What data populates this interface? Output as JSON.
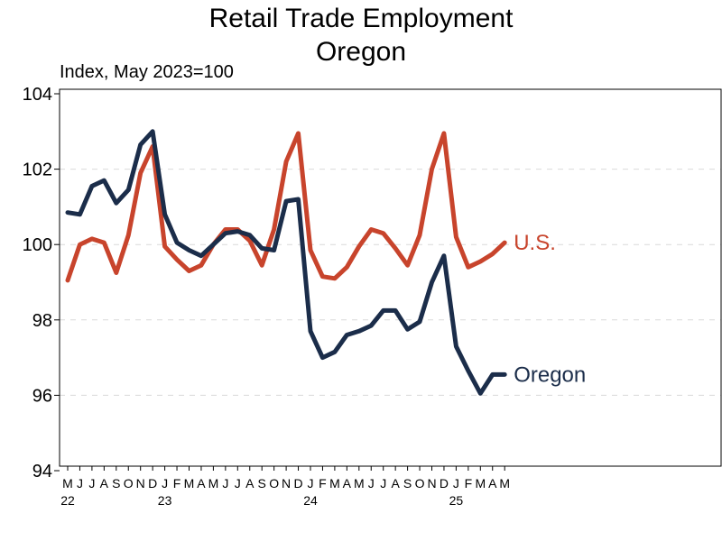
{
  "chart_data": {
    "type": "line",
    "title": "Retail Trade Employment",
    "subtitle": "Oregon",
    "ylabel": "Index, May 2023=100",
    "ylim": [
      94,
      104
    ],
    "yticks": [
      94,
      96,
      98,
      100,
      102,
      104
    ],
    "grid": true,
    "x": [
      "2022-05",
      "2022-06",
      "2022-07",
      "2022-08",
      "2022-09",
      "2022-10",
      "2022-11",
      "2022-12",
      "2023-01",
      "2023-02",
      "2023-03",
      "2023-04",
      "2023-05",
      "2023-06",
      "2023-07",
      "2023-08",
      "2023-09",
      "2023-10",
      "2023-11",
      "2023-12",
      "2024-01",
      "2024-02",
      "2024-03",
      "2024-04",
      "2024-05",
      "2024-06",
      "2024-07",
      "2024-08",
      "2024-09",
      "2024-10",
      "2024-11",
      "2024-12",
      "2025-01",
      "2025-02",
      "2025-03",
      "2025-04",
      "2025-05"
    ],
    "month_labels": [
      "M",
      "J",
      "J",
      "A",
      "S",
      "O",
      "N",
      "D",
      "J",
      "F",
      "M",
      "A",
      "M",
      "J",
      "J",
      "A",
      "S",
      "O",
      "N",
      "D",
      "J",
      "F",
      "M",
      "A",
      "M",
      "J",
      "J",
      "A",
      "S",
      "O",
      "N",
      "D",
      "J",
      "F",
      "M",
      "A",
      "M"
    ],
    "year_labels": [
      {
        "index": 0,
        "label": "22"
      },
      {
        "index": 8,
        "label": "23"
      },
      {
        "index": 20,
        "label": "24"
      },
      {
        "index": 32,
        "label": "25"
      }
    ],
    "series": [
      {
        "name": "U.S.",
        "color": "#c8442c",
        "values": [
          99.05,
          100.0,
          100.15,
          100.05,
          99.25,
          100.25,
          101.9,
          102.6,
          99.95,
          99.6,
          99.3,
          99.45,
          100.0,
          100.4,
          100.4,
          100.1,
          99.45,
          100.4,
          102.2,
          102.95,
          99.85,
          99.15,
          99.1,
          99.4,
          99.95,
          100.4,
          100.3,
          99.9,
          99.45,
          100.25,
          102.0,
          102.95,
          100.2,
          99.4,
          99.55,
          99.75,
          100.05
        ]
      },
      {
        "name": "Oregon",
        "color": "#1b2d4a",
        "values": [
          100.85,
          100.8,
          101.55,
          101.7,
          101.1,
          101.45,
          102.65,
          103.0,
          100.8,
          100.05,
          99.85,
          99.7,
          100.0,
          100.3,
          100.35,
          100.25,
          99.9,
          99.85,
          101.15,
          101.2,
          97.7,
          97.0,
          97.15,
          97.6,
          97.7,
          97.85,
          98.25,
          98.25,
          97.75,
          97.95,
          99.0,
          99.7,
          97.3,
          96.65,
          96.05,
          96.55,
          96.55
        ]
      }
    ]
  }
}
